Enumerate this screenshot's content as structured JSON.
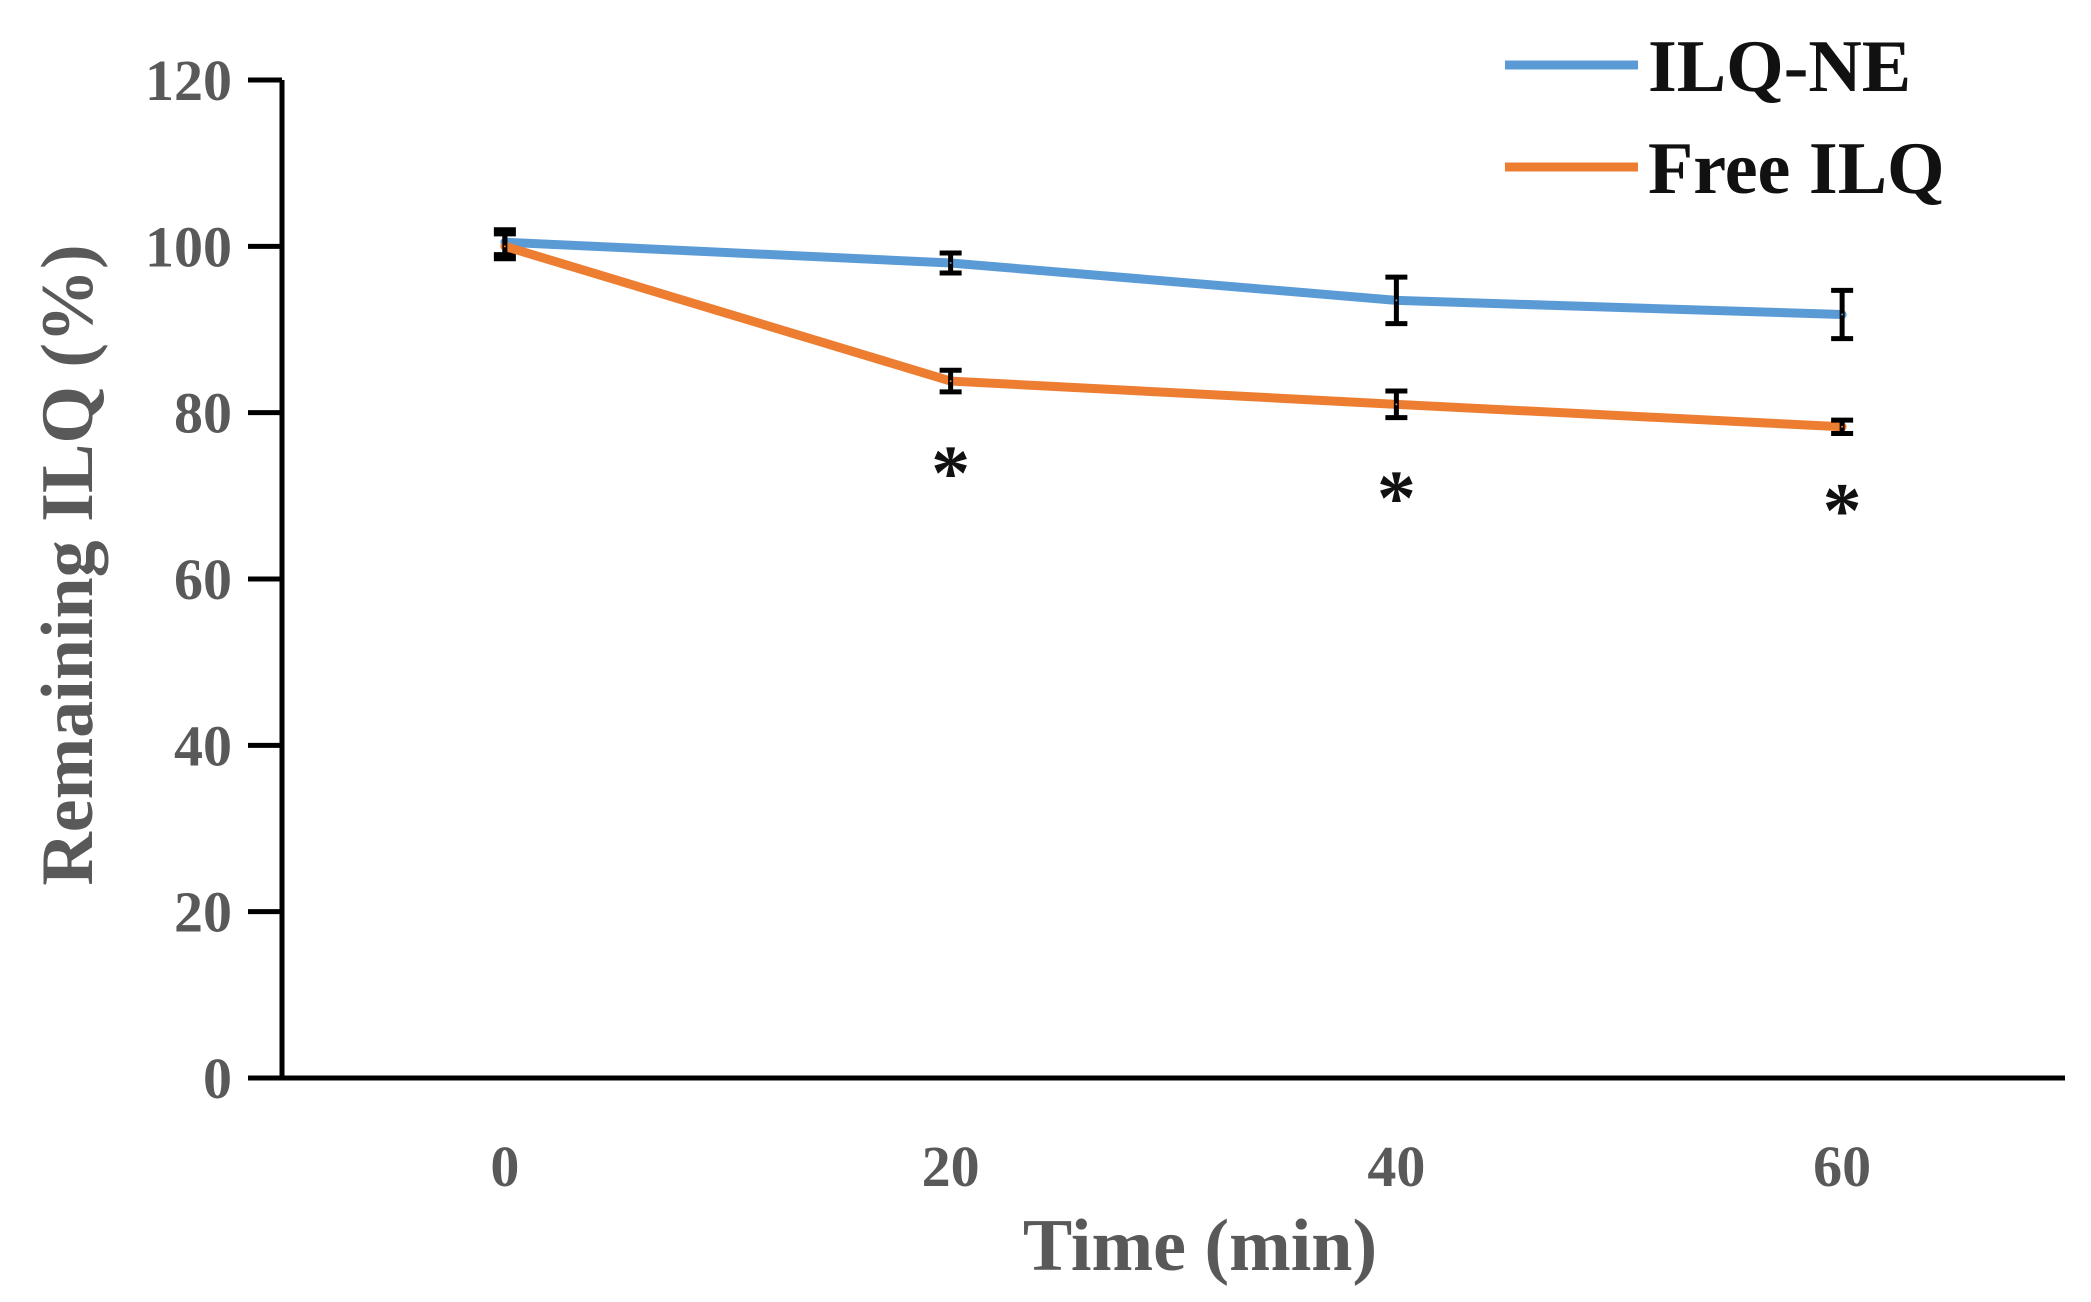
{
  "chart_data": {
    "type": "line",
    "title": "",
    "xlabel": "Time (min)",
    "ylabel": "Remaining ILQ (%)",
    "x": [
      0,
      20,
      40,
      60
    ],
    "x_tick_labels": [
      "0",
      "20",
      "40",
      "60"
    ],
    "xlim": [
      -10,
      70
    ],
    "ylim": [
      0,
      120
    ],
    "y_ticks": [
      0,
      20,
      40,
      60,
      80,
      100,
      120
    ],
    "y_tick_labels": [
      "0",
      "20",
      "40",
      "60",
      "80",
      "100",
      "120"
    ],
    "grid": false,
    "legend_position": "top-right",
    "series": [
      {
        "name": "ILQ-NE",
        "color": "#5B9BD5",
        "values": [
          100.5,
          98.0,
          93.5,
          91.8
        ],
        "errors": [
          1.5,
          1.2,
          2.8,
          2.9
        ]
      },
      {
        "name": "Free ILQ",
        "color": "#ED7D31",
        "values": [
          100.0,
          83.8,
          81.0,
          78.3
        ],
        "errors": [
          1.5,
          1.3,
          1.6,
          0.8
        ]
      }
    ],
    "annotations": [
      {
        "text": "*",
        "x": 20,
        "y": 73
      },
      {
        "text": "*",
        "x": 40,
        "y": 70
      },
      {
        "text": "*",
        "x": 60,
        "y": 68.5
      }
    ]
  }
}
